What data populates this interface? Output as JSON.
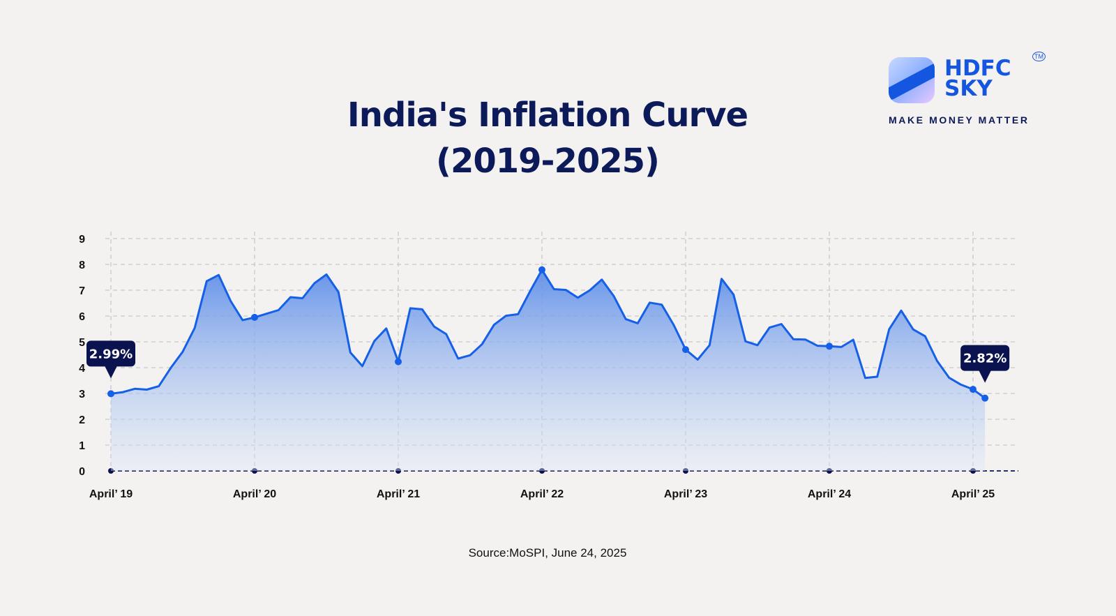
{
  "logo": {
    "brand_line1": "HDFC",
    "brand_line2": "SKY",
    "tm": "TM",
    "tagline": "MAKE MONEY MATTER"
  },
  "source": "Source:MoSPI, June 24, 2025",
  "colors": {
    "line": "#1560e6",
    "title": "#0c1a5a",
    "tooltip": "#0b1250"
  },
  "chart_data": {
    "type": "area",
    "title_line1": "India's Inflation Curve",
    "title_line2": "(2019-2025)",
    "xlabel": "",
    "ylabel": "",
    "ylim": [
      0,
      9
    ],
    "yticks": [
      "0",
      "1",
      "2",
      "3",
      "4",
      "5",
      "6",
      "7",
      "8",
      "9"
    ],
    "xticks": [
      "April’ 19",
      "April’ 20",
      "April’ 21",
      "April’ 22",
      "April’ 23",
      "April’ 24",
      "April’ 25"
    ],
    "grid": true,
    "x_start": "April 2019",
    "x_end": "May 2025",
    "frequency": "monthly",
    "values": [
      2.99,
      3.05,
      3.18,
      3.15,
      3.28,
      3.99,
      4.62,
      5.54,
      7.35,
      7.59,
      6.58,
      5.84,
      5.95,
      6.09,
      6.23,
      6.73,
      6.69,
      7.27,
      7.61,
      6.93,
      4.59,
      4.06,
      5.03,
      5.52,
      4.23,
      6.3,
      6.26,
      5.59,
      5.3,
      4.35,
      4.48,
      4.91,
      5.66,
      6.01,
      6.07,
      6.95,
      7.79,
      7.04,
      7.01,
      6.71,
      7.0,
      7.41,
      6.77,
      5.88,
      5.72,
      6.52,
      6.44,
      5.66,
      4.7,
      4.31,
      4.87,
      7.44,
      6.83,
      5.02,
      4.87,
      5.55,
      5.69,
      5.1,
      5.09,
      4.85,
      4.83,
      4.8,
      5.08,
      3.6,
      3.65,
      5.49,
      6.21,
      5.48,
      5.22,
      4.26,
      3.61,
      3.34,
      3.16,
      2.82
    ],
    "annotations": [
      {
        "label": "2.99%",
        "index": 0
      },
      {
        "label": "2.82%",
        "index": 73
      }
    ]
  }
}
